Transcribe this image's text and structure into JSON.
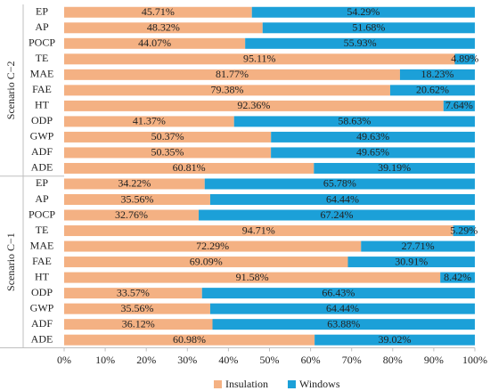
{
  "chart_data": {
    "type": "bar",
    "orientation": "horizontal",
    "stacked": true,
    "series": [
      {
        "name": "Insulation",
        "color": "#f4b183"
      },
      {
        "name": "Windows",
        "color": "#1ca0d8"
      }
    ],
    "groups": [
      {
        "name": "Scenario C−2",
        "categories": [
          "EP",
          "AP",
          "POCP",
          "TE",
          "MAE",
          "FAE",
          "HT",
          "ODP",
          "GWP",
          "ADF",
          "ADE"
        ],
        "series": [
          {
            "values": [
              45.71,
              48.32,
              44.07,
              95.11,
              81.77,
              79.38,
              92.36,
              41.37,
              50.37,
              50.35,
              60.81
            ],
            "value_labels": [
              "45.71%",
              "48.32%",
              "44.07%",
              "95.11%",
              "81.77%",
              "79.38%",
              "92.36%",
              "41.37%",
              "50.37%",
              "50.35%",
              "60.81%"
            ]
          },
          {
            "values": [
              54.29,
              51.68,
              55.93,
              4.89,
              18.23,
              20.62,
              7.64,
              58.63,
              49.63,
              49.65,
              39.19
            ],
            "value_labels": [
              "54.29%",
              "51.68%",
              "55.93%",
              "4.89%",
              "18.23%",
              "20.62%",
              "7.64%",
              "58.63%",
              "49.63%",
              "49.65%",
              "39.19%"
            ]
          }
        ]
      },
      {
        "name": "Scenario C−1",
        "categories": [
          "EP",
          "AP",
          "POCP",
          "TE",
          "MAE",
          "FAE",
          "HT",
          "ODP",
          "GWP",
          "ADF",
          "ADE"
        ],
        "series": [
          {
            "values": [
              34.22,
              35.56,
              32.76,
              94.71,
              72.29,
              69.09,
              91.58,
              33.57,
              35.56,
              36.12,
              60.98
            ],
            "value_labels": [
              "34.22%",
              "35.56%",
              "32.76%",
              "94.71%",
              "72.29%",
              "69.09%",
              "91.58%",
              "33.57%",
              "35.56%",
              "36.12%",
              "60.98%"
            ]
          },
          {
            "values": [
              65.78,
              64.44,
              67.24,
              5.29,
              27.71,
              30.91,
              8.42,
              66.43,
              64.44,
              63.88,
              39.02
            ],
            "value_labels": [
              "65.78%",
              "64.44%",
              "67.24%",
              "5.29%",
              "27.71%",
              "30.91%",
              "8.42%",
              "66.43%",
              "64.44%",
              "63.88%",
              "39.02%"
            ]
          }
        ]
      }
    ],
    "xlim": [
      0,
      100
    ],
    "xticks": [
      {
        "value": 0,
        "label": "0%"
      },
      {
        "value": 10,
        "label": "10%"
      },
      {
        "value": 20,
        "label": "20%"
      },
      {
        "value": 30,
        "label": "30%"
      },
      {
        "value": 40,
        "label": "40%"
      },
      {
        "value": 50,
        "label": "50%"
      },
      {
        "value": 60,
        "label": "60%"
      },
      {
        "value": 70,
        "label": "70%"
      },
      {
        "value": 80,
        "label": "80%"
      },
      {
        "value": 90,
        "label": "90%"
      },
      {
        "value": 100,
        "label": "100%"
      }
    ],
    "legend": "bottom"
  }
}
